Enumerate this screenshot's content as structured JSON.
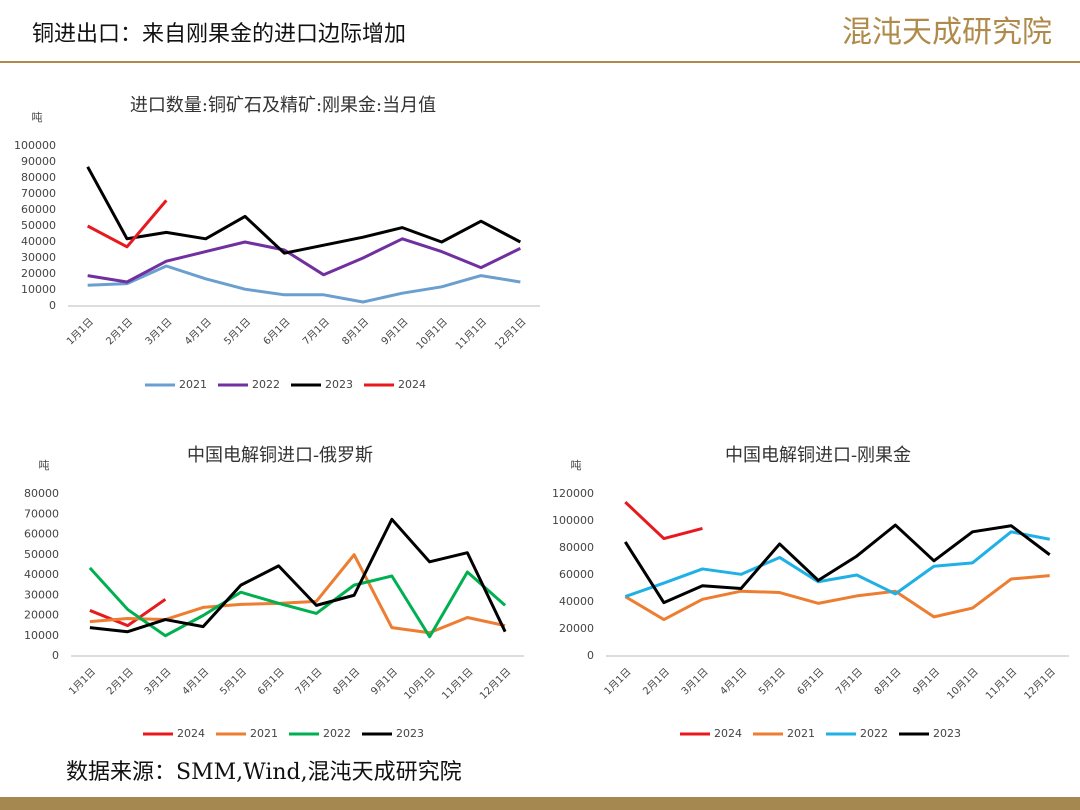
{
  "header": {
    "title": "铜进出口：来自刚果金的进口边际增加",
    "logo": "混沌天成研究院"
  },
  "source": "数据来源：SMM,Wind,混沌天成研究院",
  "chart_data": [
    {
      "type": "line",
      "title": "进口数量:铜矿石及精矿:刚果金:当月值",
      "y_label": "吨",
      "categories": [
        "1月1日",
        "2月1日",
        "3月1日",
        "4月1日",
        "5月1日",
        "6月1日",
        "7月1日",
        "8月1日",
        "9月1日",
        "10月1日",
        "11月1日",
        "12月1日"
      ],
      "ylim": [
        0,
        100000
      ],
      "yticks": [
        0,
        10000,
        20000,
        30000,
        40000,
        50000,
        60000,
        70000,
        80000,
        90000,
        100000
      ],
      "series": [
        {
          "name": "2021",
          "color": "#6a9fd0",
          "values": [
            13000,
            14000,
            25000,
            17000,
            10500,
            7000,
            7000,
            2500,
            8000,
            12000,
            19000,
            15000
          ]
        },
        {
          "name": "2022",
          "color": "#7030a0",
          "values": [
            19000,
            15000,
            28000,
            34000,
            40000,
            35000,
            19500,
            30000,
            42000,
            34000,
            24000,
            36000
          ]
        },
        {
          "name": "2023",
          "color": "#000000",
          "values": [
            87000,
            42000,
            46000,
            42000,
            56000,
            33000,
            38000,
            43000,
            49000,
            40000,
            53000,
            40000
          ]
        },
        {
          "name": "2024",
          "color": "#e8191e",
          "values": [
            50000,
            37000,
            66000,
            null,
            null,
            null,
            null,
            null,
            null,
            null,
            null,
            null
          ]
        }
      ]
    },
    {
      "type": "line",
      "title": "中国电解铜进口-俄罗斯",
      "y_label": "吨",
      "categories": [
        "1月1日",
        "2月1日",
        "3月1日",
        "4月1日",
        "5月1日",
        "6月1日",
        "7月1日",
        "8月1日",
        "9月1日",
        "10月1日",
        "11月1日",
        "12月1日"
      ],
      "ylim": [
        0,
        80000
      ],
      "yticks": [
        0,
        10000,
        20000,
        30000,
        40000,
        50000,
        60000,
        70000,
        80000
      ],
      "series": [
        {
          "name": "2024",
          "color": "#e8191e",
          "values": [
            22500,
            15000,
            28000,
            null,
            null,
            null,
            null,
            null,
            null,
            null,
            null,
            null
          ]
        },
        {
          "name": "2021",
          "color": "#ed7d31",
          "values": [
            17000,
            18500,
            18000,
            24000,
            25500,
            26000,
            27000,
            50000,
            14000,
            11500,
            19000,
            15000
          ]
        },
        {
          "name": "2022",
          "color": "#00b050",
          "values": [
            43500,
            23000,
            10000,
            20000,
            31500,
            26000,
            21000,
            35000,
            39500,
            9500,
            41500,
            25000
          ]
        },
        {
          "name": "2023",
          "color": "#000000",
          "values": [
            14000,
            12000,
            18000,
            14500,
            35000,
            44500,
            25000,
            30000,
            67500,
            46500,
            51000,
            12000
          ]
        }
      ]
    },
    {
      "type": "line",
      "title": "中国电解铜进口-刚果金",
      "y_label": "吨",
      "categories": [
        "1月1日",
        "2月1日",
        "3月1日",
        "4月1日",
        "5月1日",
        "6月1日",
        "7月1日",
        "8月1日",
        "9月1日",
        "10月1日",
        "11月1日",
        "12月1日"
      ],
      "ylim": [
        0,
        120000
      ],
      "yticks": [
        0,
        20000,
        40000,
        60000,
        80000,
        100000,
        120000
      ],
      "series": [
        {
          "name": "2024",
          "color": "#e8191e",
          "values": [
            114000,
            87000,
            94500,
            null,
            null,
            null,
            null,
            null,
            null,
            null,
            null,
            null
          ]
        },
        {
          "name": "2021",
          "color": "#ed7d31",
          "values": [
            44000,
            27000,
            42000,
            48000,
            47000,
            39000,
            44500,
            48000,
            29000,
            35500,
            57000,
            59500
          ]
        },
        {
          "name": "2022",
          "color": "#1fb0e6",
          "values": [
            44000,
            54000,
            64500,
            60500,
            73000,
            55000,
            60000,
            46000,
            66500,
            69000,
            92000,
            86500
          ]
        },
        {
          "name": "2023",
          "color": "#000000",
          "values": [
            84500,
            39500,
            52000,
            50000,
            83000,
            56000,
            74000,
            97000,
            70500,
            92000,
            96500,
            75000
          ]
        }
      ]
    }
  ]
}
